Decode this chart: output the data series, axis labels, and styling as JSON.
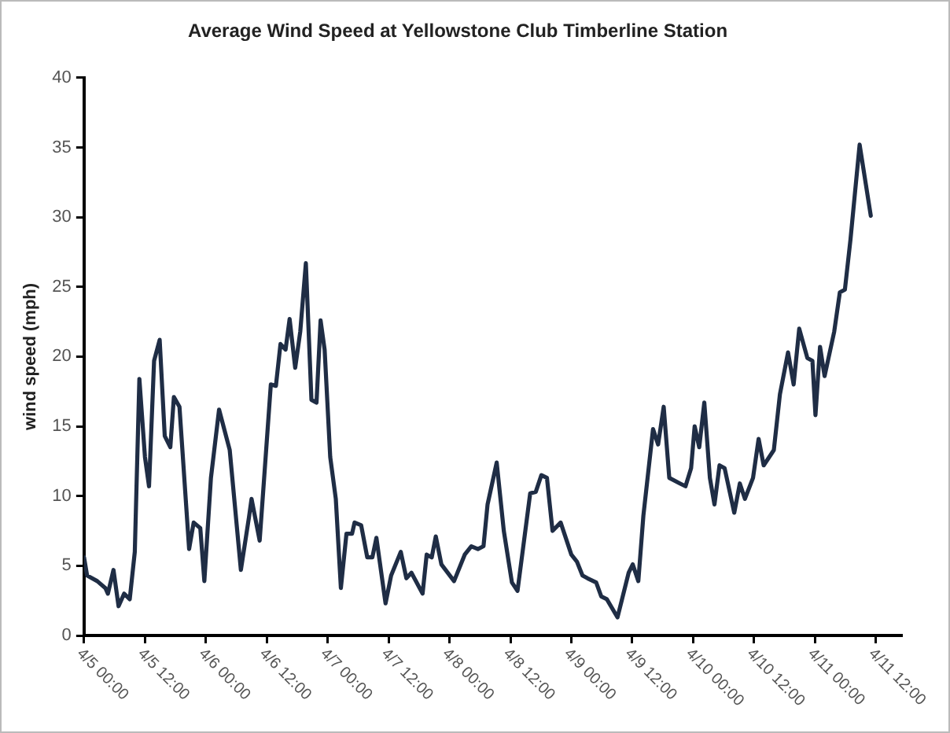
{
  "chart_data": {
    "type": "line",
    "title": "Average Wind Speed at Yellowstone Club Timberline Station",
    "ylabel": "wind speed (mph)",
    "xlim": [
      "--04-05T00:00",
      "--04-11T17:00"
    ],
    "xticks": [
      {
        "value": "--04-05T00:00",
        "label": "4/5 00:00"
      },
      {
        "value": "--04-05T12:00",
        "label": "4/5 12:00"
      },
      {
        "value": "--04-06T00:00",
        "label": "4/6 00:00"
      },
      {
        "value": "--04-06T12:00",
        "label": "4/6 12:00"
      },
      {
        "value": "--04-07T00:00",
        "label": "4/7 00:00"
      },
      {
        "value": "--04-07T12:00",
        "label": "4/7 12:00"
      },
      {
        "value": "--04-08T00:00",
        "label": "4/8 00:00"
      },
      {
        "value": "--04-08T12:00",
        "label": "4/8 12:00"
      },
      {
        "value": "--04-09T00:00",
        "label": "4/9 00:00"
      },
      {
        "value": "--04-09T12:00",
        "label": "4/9 12:00"
      },
      {
        "value": "--04-10T00:00",
        "label": "4/10 00:00"
      },
      {
        "value": "--04-10T12:00",
        "label": "4/10 12:00"
      },
      {
        "value": "--04-11T00:00",
        "label": "4/11 00:00"
      },
      {
        "value": "--04-11T12:00",
        "label": "4/11 12:00"
      }
    ],
    "ylim": [
      0,
      40
    ],
    "yticks": [
      0,
      5,
      10,
      15,
      20,
      25,
      30,
      35,
      40
    ],
    "grid": false,
    "legend": false,
    "marker": "none",
    "line_style": "solid",
    "series": [
      {
        "color": "#1f2d45",
        "x": [
          "--04-05T00:00",
          "--04-05T00:36",
          "--04-05T02:36",
          "--04-05T04:12",
          "--04-05T04:42",
          "--04-05T05:48",
          "--04-05T06:48",
          "--04-05T07:54",
          "--04-05T09:00",
          "--04-05T10:00",
          "--04-05T10:54",
          "--04-05T12:00",
          "--04-05T12:48",
          "--04-05T13:48",
          "--04-05T14:54",
          "--04-05T15:54",
          "--04-05T17:00",
          "--04-05T17:42",
          "--04-05T18:48",
          "--04-05T20:42",
          "--04-05T21:36",
          "--04-05T22:54",
          "--04-05T23:42",
          "--04-06T01:00",
          "--04-06T02:36",
          "--04-06T04:42",
          "--04-06T06:54",
          "--04-06T08:30",
          "--04-06T09:00",
          "--04-06T10:36",
          "--04-06T12:48",
          "--04-06T13:48",
          "--04-06T14:42",
          "--04-06T15:42",
          "--04-06T16:30",
          "--04-06T17:36",
          "--04-06T18:36",
          "--04-06T19:42",
          "--04-06T20:48",
          "--04-06T21:48",
          "--04-06T22:36",
          "--04-06T23:24",
          "--04-07T00:30",
          "--04-07T01:36",
          "--04-07T02:36",
          "--04-07T03:42",
          "--04-07T04:48",
          "--04-07T05:18",
          "--04-07T06:36",
          "--04-07T07:48",
          "--04-07T08:48",
          "--04-07T09:36",
          "--04-07T11:24",
          "--04-07T12:30",
          "--04-07T14:24",
          "--04-07T15:30",
          "--04-07T16:30",
          "--04-07T18:42",
          "--04-07T19:30",
          "--04-07T20:30",
          "--04-07T21:18",
          "--04-07T22:24",
          "--04-08T00:54",
          "--04-08T03:00",
          "--04-08T04:18",
          "--04-08T05:36",
          "--04-08T06:42",
          "--04-08T07:30",
          "--04-08T09:18",
          "--04-08T10:42",
          "--04-08T12:18",
          "--04-08T13:24",
          "--04-08T15:54",
          "--04-08T17:00",
          "--04-08T18:06",
          "--04-08T19:12",
          "--04-08T20:18",
          "--04-08T21:54",
          "--04-09T00:00",
          "--04-09T01:06",
          "--04-09T02:12",
          "--04-09T03:12",
          "--04-09T04:54",
          "--04-09T05:54",
          "--04-09T07:00",
          "--04-09T09:06",
          "--04-09T11:18",
          "--04-09T12:06",
          "--04-09T13:12",
          "--04-09T14:12",
          "--04-09T16:06",
          "--04-09T17:06",
          "--04-09T18:12",
          "--04-09T19:18",
          "--04-09T21:24",
          "--04-09T22:30",
          "--04-09T23:36",
          "--04-10T00:18",
          "--04-10T01:12",
          "--04-10T02:12",
          "--04-10T03:18",
          "--04-10T04:12",
          "--04-10T05:12",
          "--04-10T06:12",
          "--04-10T08:06",
          "--04-10T09:12",
          "--04-10T10:12",
          "--04-10T11:48",
          "--04-10T12:54",
          "--04-10T13:54",
          "--04-10T15:54",
          "--04-10T17:06",
          "--04-10T18:42",
          "--04-10T19:48",
          "--04-10T20:54",
          "--04-10T22:30",
          "--04-10T23:30",
          "--04-11T00:06",
          "--04-11T01:00",
          "--04-11T01:54",
          "--04-11T03:48",
          "--04-11T04:54",
          "--04-11T05:54",
          "--04-11T07:00",
          "--04-11T08:48",
          "--04-11T11:00"
        ],
        "values": [
          5.6,
          4.3,
          3.9,
          3.4,
          3,
          4.7,
          2.1,
          3,
          2.6,
          6,
          18.4,
          12.8,
          10.7,
          19.7,
          21.2,
          14.3,
          13.5,
          17.1,
          16.4,
          6.2,
          8.1,
          7.7,
          3.9,
          11.3,
          16.2,
          13.3,
          4.7,
          8.5,
          9.8,
          6.8,
          18,
          17.9,
          20.9,
          20.5,
          22.7,
          19.2,
          21.8,
          26.7,
          16.9,
          16.7,
          22.6,
          20.5,
          12.8,
          9.8,
          3.4,
          7.3,
          7.3,
          8.1,
          7.9,
          5.6,
          5.6,
          7,
          2.3,
          4.3,
          6,
          4.1,
          4.5,
          3,
          5.8,
          5.6,
          7.1,
          5.1,
          3.9,
          5.8,
          6.4,
          6.2,
          6.4,
          9.4,
          12.4,
          7.5,
          3.8,
          3.2,
          10.2,
          10.3,
          11.5,
          11.3,
          7.5,
          8.1,
          5.8,
          5.3,
          4.3,
          4.1,
          3.8,
          2.8,
          2.6,
          1.3,
          4.5,
          5.1,
          3.9,
          8.6,
          14.8,
          13.7,
          16.4,
          11.3,
          10.9,
          10.7,
          12,
          15,
          13.5,
          16.7,
          11.3,
          9.4,
          12.2,
          12,
          8.8,
          10.9,
          9.8,
          11.3,
          14.1,
          12.2,
          13.3,
          17.3,
          20.3,
          18,
          22,
          19.9,
          19.7,
          15.8,
          20.7,
          18.6,
          21.8,
          24.6,
          24.8,
          28.4,
          35.2,
          30.1
        ]
      }
    ]
  }
}
